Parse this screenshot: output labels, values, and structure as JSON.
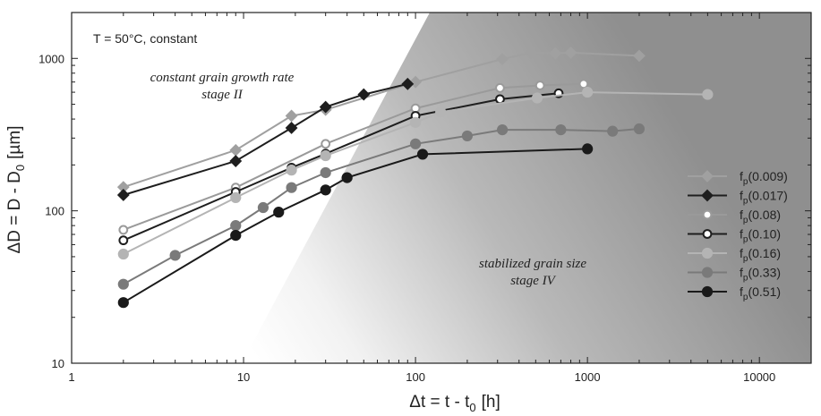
{
  "chart_data": {
    "type": "line",
    "xscale": "log",
    "yscale": "log",
    "xlim": [
      1,
      20000
    ],
    "ylim": [
      10,
      2000
    ],
    "xlabel_main": "Δt = t - t",
    "xlabel_sub": "0",
    "xlabel_unit": "[h]",
    "ylabel_main": "ΔD = D - D",
    "ylabel_sub": "0",
    "ylabel_unit": "[µm]",
    "x_ticks": [
      {
        "value": 1,
        "label": "1"
      },
      {
        "value": 10,
        "label": "10"
      },
      {
        "value": 100,
        "label": "100"
      },
      {
        "value": 1000,
        "label": "1000"
      },
      {
        "value": 10000,
        "label": "10000"
      }
    ],
    "y_ticks": [
      {
        "value": 10,
        "label": "10"
      },
      {
        "value": 100,
        "label": "100"
      },
      {
        "value": 1000,
        "label": "1000"
      }
    ],
    "annotations": {
      "condition": "T = 50°C, constant",
      "stage2_line1": "constant grain growth rate",
      "stage2_line2": "stage II",
      "stage4_line1": "stabilized grain size",
      "stage4_line2": "stage IV"
    },
    "legend_position": "right",
    "series": [
      {
        "name_main": "f",
        "name_sub": "p",
        "name_rest": "(0.009)",
        "marker": "diamond",
        "color": "#a0a0a0",
        "fill": "#a0a0a0",
        "x": [
          2,
          9,
          19,
          30,
          100,
          320,
          470,
          650,
          800,
          2000
        ],
        "y": [
          143,
          250,
          420,
          460,
          700,
          990,
          1090,
          1080,
          1090,
          1040
        ]
      },
      {
        "name_main": "f",
        "name_sub": "p",
        "name_rest": "(0.017)",
        "marker": "diamond",
        "color": "#1e1e1e",
        "fill": "#1e1e1e",
        "x": [
          2,
          9,
          19,
          30,
          50,
          90
        ],
        "y": [
          127,
          212,
          350,
          480,
          580,
          680
        ]
      },
      {
        "name_main": "f",
        "name_sub": "p",
        "name_rest": "(0.08)",
        "marker": "circle-open",
        "color": "#9a9a9a",
        "fill": "#ffffff",
        "x": [
          2,
          9,
          30,
          100,
          310,
          530,
          950
        ],
        "y": [
          75,
          142,
          275,
          470,
          640,
          665,
          680
        ]
      },
      {
        "name_main": "f",
        "name_sub": "p",
        "name_rest": "(0.10)",
        "marker": "circle-open",
        "color": "#1e1e1e",
        "fill": "#ffffff",
        "x": [
          2,
          9,
          19,
          30,
          100,
          310,
          680
        ],
        "y": [
          64,
          133,
          192,
          237,
          420,
          540,
          590
        ]
      },
      {
        "name_main": "f",
        "name_sub": "p",
        "name_rest": "(0.16)",
        "marker": "circle",
        "color": "#b4b4b4",
        "fill": "#b4b4b4",
        "x": [
          2,
          9,
          19,
          30,
          100,
          140,
          510,
          1000,
          5000
        ],
        "y": [
          52,
          122,
          185,
          230,
          380,
          445,
          550,
          600,
          580
        ]
      },
      {
        "name_main": "f",
        "name_sub": "p",
        "name_rest": "(0.33)",
        "marker": "circle",
        "color": "#7a7a7a",
        "fill": "#7a7a7a",
        "x": [
          2,
          4,
          9,
          13,
          19,
          30,
          100,
          200,
          320,
          700,
          1400,
          2000
        ],
        "y": [
          33,
          51,
          80,
          105,
          142,
          178,
          275,
          310,
          340,
          340,
          333,
          345
        ]
      },
      {
        "name_main": "f",
        "name_sub": "p",
        "name_rest": "(0.51)",
        "marker": "circle",
        "color": "#1a1a1a",
        "fill": "#1a1a1a",
        "x": [
          2,
          9,
          16,
          30,
          40,
          110,
          1000
        ],
        "y": [
          25,
          69,
          98,
          137,
          165,
          235,
          255
        ]
      }
    ]
  }
}
